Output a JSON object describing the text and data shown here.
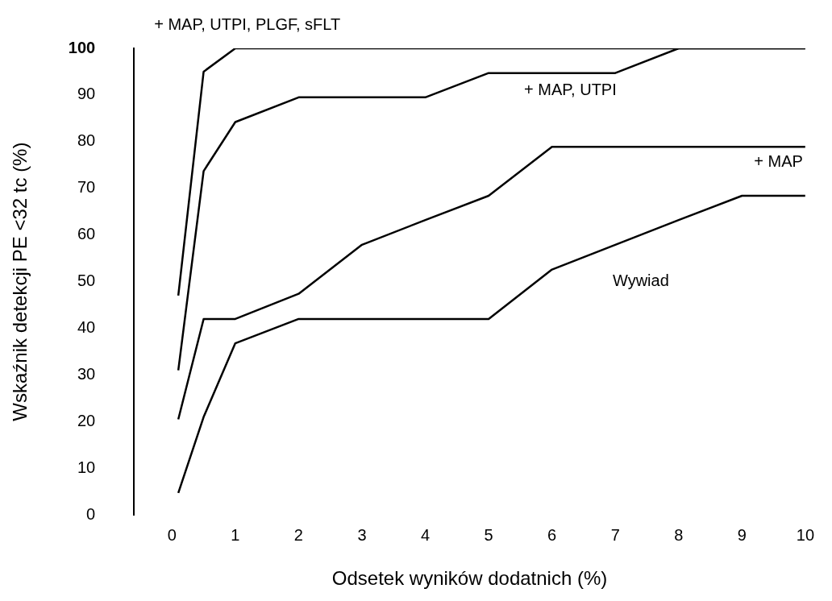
{
  "chart_data": {
    "type": "line",
    "xlabel": "Odsetek wyników dodatnich (%)",
    "ylabel": "Wskaźnik detekcji PE <32 tc (%)",
    "x": [
      0.1,
      0.5,
      1,
      2,
      3,
      4,
      5,
      6,
      7,
      8,
      9,
      10
    ],
    "series": [
      {
        "name": "+ MAP, UTPI, PLGF, sFLT",
        "color": "#000000",
        "values": [
          47,
          95,
          100,
          100,
          100,
          100,
          100,
          100,
          100,
          100,
          100,
          100
        ]
      },
      {
        "name": "+ MAP, UTPI",
        "color": "#000000",
        "values": [
          31,
          73.7,
          84.2,
          89.5,
          89.5,
          89.5,
          94.7,
          94.7,
          94.7,
          100,
          100,
          100
        ]
      },
      {
        "name": "+ MAP",
        "color": "#000000",
        "values": [
          20.5,
          42,
          42,
          47.4,
          57.9,
          63.2,
          68.4,
          78.9,
          78.9,
          78.9,
          78.9,
          78.9
        ]
      },
      {
        "name": "Wywiad",
        "color": "#000000",
        "values": [
          4.7,
          21,
          36.8,
          42,
          42,
          42,
          42,
          52.6,
          57.9,
          63.2,
          68.4,
          68.4
        ]
      }
    ],
    "xlim": [
      -0.6,
      10
    ],
    "xticks": [
      0,
      1,
      2,
      3,
      4,
      5,
      6,
      7,
      8,
      9,
      10
    ],
    "ylim": [
      0,
      100
    ],
    "yticks": [
      0,
      10,
      20,
      30,
      40,
      50,
      60,
      70,
      80,
      90,
      100
    ],
    "grid": false,
    "legend": false,
    "marker": "none",
    "line_style": "solid"
  }
}
